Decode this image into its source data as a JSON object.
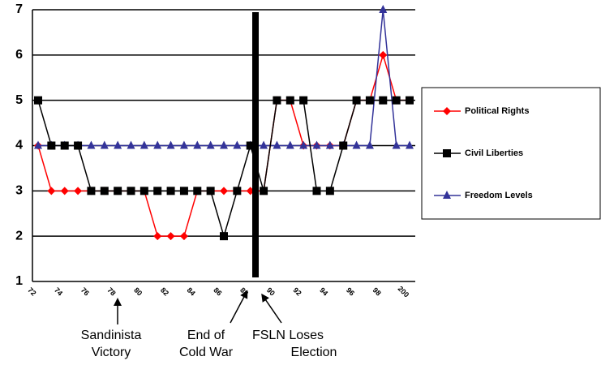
{
  "chart_data": {
    "type": "line",
    "categories": [
      "72",
      null,
      "74",
      null,
      "76",
      null,
      "78",
      null,
      "80",
      null,
      "82",
      null,
      "84",
      null,
      "86",
      null,
      "88",
      null,
      "90",
      null,
      "92",
      null,
      "94",
      null,
      "96",
      null,
      "98",
      null,
      "200"
    ],
    "series": [
      {
        "name": "Political Rights",
        "color": "#ff0000",
        "marker": "diamond",
        "values": [
          4,
          3,
          3,
          3,
          3,
          3,
          3,
          3,
          3,
          2,
          2,
          2,
          3,
          3,
          3,
          3,
          3,
          3,
          5,
          5,
          4,
          4,
          4,
          4,
          5,
          5,
          6,
          5,
          5
        ]
      },
      {
        "name": "Civil Liberties",
        "color": "#000000",
        "marker": "square",
        "values": [
          5,
          4,
          4,
          4,
          3,
          3,
          3,
          3,
          3,
          3,
          3,
          3,
          3,
          3,
          2,
          3,
          4,
          3,
          5,
          5,
          5,
          3,
          3,
          4,
          5,
          5,
          5,
          5,
          5
        ]
      },
      {
        "name": "Freedom Levels",
        "color": "#333399",
        "marker": "triangle",
        "values": [
          4,
          4,
          4,
          4,
          4,
          4,
          4,
          4,
          4,
          4,
          4,
          4,
          4,
          4,
          4,
          4,
          4,
          4,
          4,
          4,
          4,
          4,
          4,
          4,
          4,
          4,
          7,
          4,
          4
        ]
      }
    ],
    "ylim": [
      1,
      7
    ],
    "yticks": [
      1,
      2,
      3,
      4,
      5,
      6,
      7
    ],
    "grid": true,
    "legend": "right",
    "annotations": [
      {
        "lines": [
          "Sandinista",
          "Victory"
        ]
      },
      {
        "lines": [
          "End of",
          "Cold War"
        ]
      },
      {
        "lines": [
          "FSLN Loses",
          "Election"
        ]
      }
    ]
  }
}
